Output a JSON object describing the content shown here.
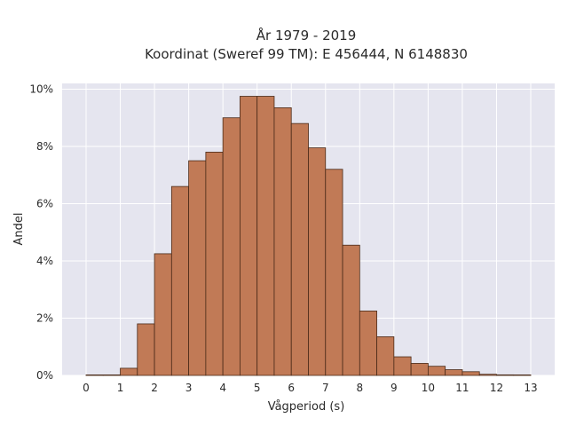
{
  "chart_data": {
    "type": "bar",
    "title": "År 1979 - 2019",
    "subtitle": "Koordinat (Sweref 99 TM): E 456444, N 6148830",
    "xlabel": "Vågperiod (s)",
    "ylabel": "Andel",
    "bin_width": 0.5,
    "bins": [
      0,
      0.5,
      1,
      1.5,
      2,
      2.5,
      3,
      3.5,
      4,
      4.5,
      5,
      5.5,
      6,
      6.5,
      7,
      7.5,
      8,
      8.5,
      9,
      9.5,
      10,
      10.5,
      11,
      11.5,
      12,
      12.5
    ],
    "values": [
      0.01,
      0.0,
      0.25,
      1.8,
      4.25,
      6.6,
      7.5,
      7.8,
      9.0,
      9.75,
      9.75,
      9.35,
      8.8,
      7.95,
      7.2,
      4.55,
      2.25,
      1.35,
      0.65,
      0.42,
      0.32,
      0.2,
      0.13,
      0.04,
      0.02,
      0.0
    ],
    "xlim": [
      -0.7,
      13.7
    ],
    "ylim": [
      0,
      10.2
    ],
    "xticks": [
      "0",
      "1",
      "2",
      "3",
      "4",
      "5",
      "6",
      "7",
      "8",
      "9",
      "10",
      "11",
      "12",
      "13"
    ],
    "yticks": [
      "0%",
      "2%",
      "4%",
      "6%",
      "8%",
      "10%"
    ],
    "ytick_values": [
      0,
      2,
      4,
      6,
      8,
      10
    ],
    "grid": true,
    "background": "#e5e5ef",
    "bar_color": "#c17a56"
  }
}
